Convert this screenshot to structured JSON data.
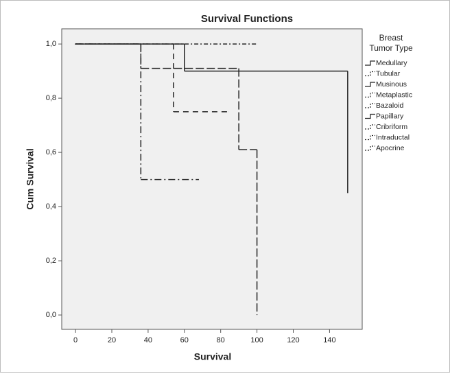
{
  "chart_data": {
    "type": "step",
    "title": "Survival Functions",
    "x_label": "Survival",
    "y_label": "Cum Survival",
    "legend_title": [
      "Breast",
      "Tumor Type"
    ],
    "xlim": [
      -7.6,
      158
    ],
    "ylim": [
      -0.053,
      1.056
    ],
    "xticks": [
      0,
      20,
      40,
      60,
      80,
      100,
      120,
      140
    ],
    "yticks": [
      {
        "value": 0,
        "label": "0,0"
      },
      {
        "value": 0.2,
        "label": "0,2"
      },
      {
        "value": 0.4,
        "label": "0,4"
      },
      {
        "value": 0.6,
        "label": "0,6"
      },
      {
        "value": 0.8,
        "label": "0,8"
      },
      {
        "value": 1,
        "label": "1,0"
      }
    ],
    "series": [
      {
        "name": "Medullary",
        "color": "#222222",
        "dash": "none",
        "x": [
          0,
          60,
          150
        ],
        "values": [
          1,
          0.9,
          0.45
        ]
      },
      {
        "name": "Tubular",
        "color": "#222222",
        "dash": "3,3",
        "x": [
          0
        ],
        "values": [
          1
        ]
      },
      {
        "name": "Musinous",
        "color": "#222222",
        "dash": "none",
        "x": [
          0
        ],
        "values": [
          1
        ]
      },
      {
        "name": "Metaplastic",
        "color": "#222222",
        "dash": "10,4,2,4",
        "x": [
          0,
          36,
          68
        ],
        "values": [
          1,
          0.5,
          0.5
        ]
      },
      {
        "name": "Bazaloid",
        "color": "#222222",
        "dash": "6,3,2,3",
        "x": [
          0
        ],
        "values": [
          1
        ]
      },
      {
        "name": "Papillary",
        "color": "#222222",
        "dash": "none",
        "x": [
          0
        ],
        "values": [
          1
        ]
      },
      {
        "name": "Cribriform",
        "color": "#222222",
        "dash": "2,3,6,3",
        "x": [
          0,
          100
        ],
        "values": [
          1,
          1
        ]
      },
      {
        "name": "Intraductal",
        "color": "#222222",
        "dash": "12,4",
        "x": [
          0,
          36,
          90,
          100
        ],
        "values": [
          1,
          0.91,
          0.61,
          0
        ]
      },
      {
        "name": "Apocrine",
        "color": "#222222",
        "dash": "8,6",
        "x": [
          0,
          54,
          84
        ],
        "values": [
          1,
          0.75,
          0.75
        ]
      }
    ]
  }
}
